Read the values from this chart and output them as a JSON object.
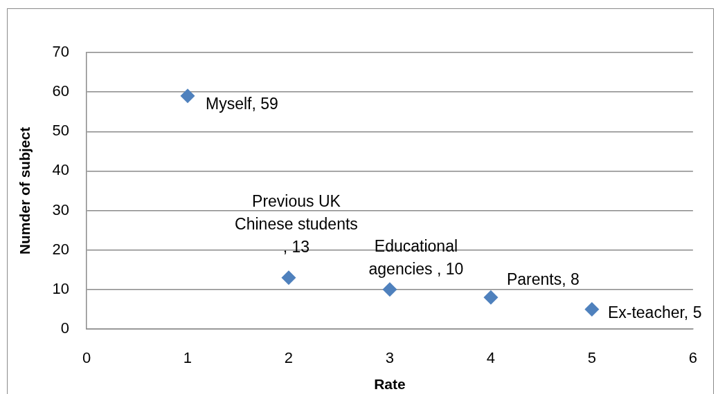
{
  "chart_data": {
    "type": "scatter",
    "xlabel": "Rate",
    "ylabel": "Numder of subject",
    "x": [
      1,
      2,
      3,
      4,
      5
    ],
    "values": [
      59,
      13,
      10,
      8,
      5
    ],
    "value_labels": [
      "Myself, 59",
      "Previous UK Chinese students , 13",
      "Educational agencies , 10",
      "Parents, 8",
      "Ex-teacher, 5"
    ],
    "color": "#4f81bd",
    "marker": "diamond",
    "xlim": [
      0,
      6
    ],
    "xticks": [
      0,
      1,
      2,
      3,
      4,
      5,
      6
    ],
    "ylim": [
      0,
      70
    ],
    "yticks": [
      0,
      10,
      20,
      30,
      40,
      50,
      60,
      70
    ],
    "grid": "y"
  }
}
